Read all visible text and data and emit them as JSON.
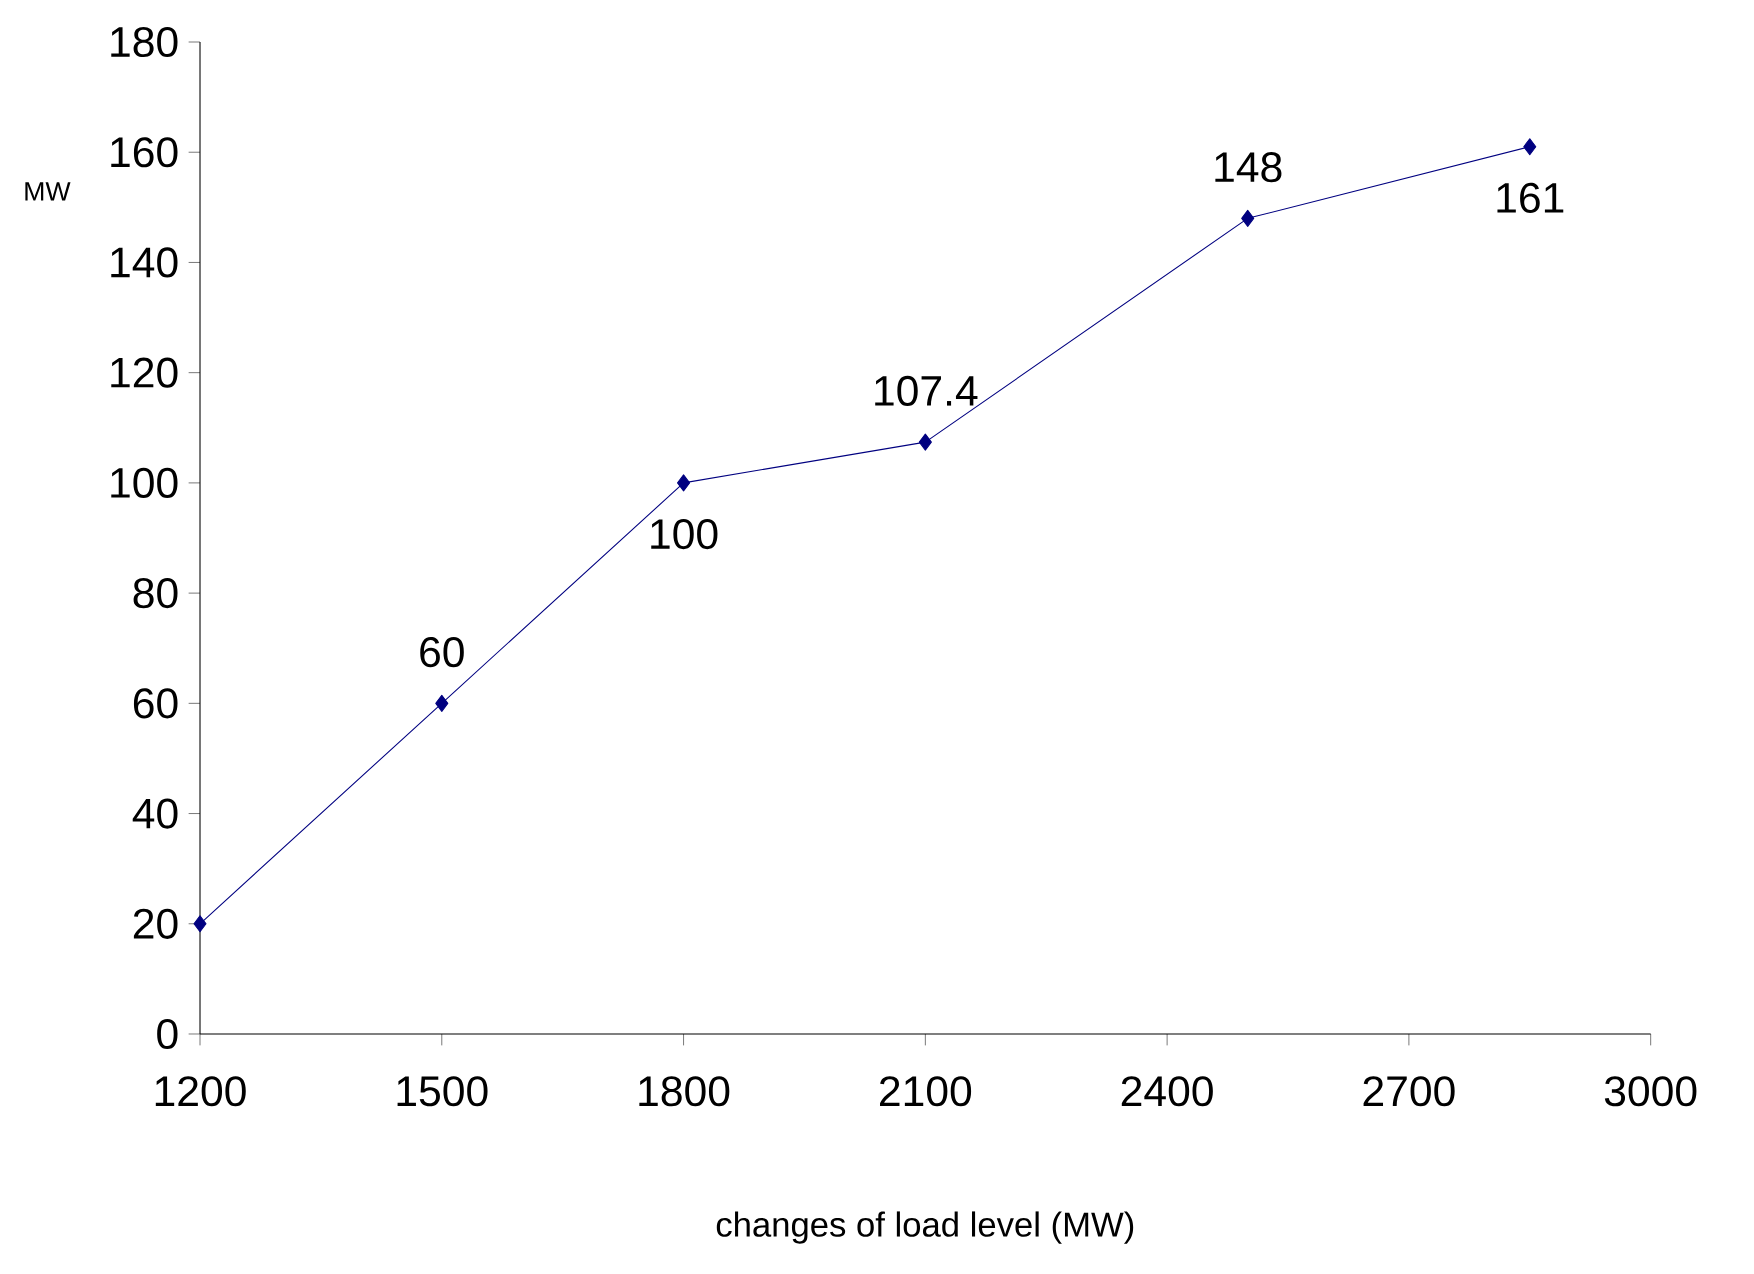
{
  "chart_data": {
    "type": "line",
    "xlabel": "changes of load level  (MW)",
    "ylabel": "MW",
    "x": [
      1200,
      1500,
      1800,
      2100,
      2500,
      2850
    ],
    "series": [
      {
        "color": "#000080",
        "values": [
          20,
          60,
          100,
          107.4,
          148,
          161
        ],
        "value_labels": [
          null,
          "60",
          "100",
          "107.4",
          "148",
          "161"
        ]
      }
    ],
    "xlim": [
      1200,
      3000
    ],
    "xticks": [
      1200,
      1500,
      1800,
      2100,
      2400,
      2700,
      3000
    ],
    "ylim": [
      0,
      180
    ],
    "yticks": [
      0,
      20,
      40,
      60,
      80,
      100,
      120,
      140,
      160,
      180
    ],
    "marker": "diamond",
    "line_style": "solid",
    "grid": false
  }
}
